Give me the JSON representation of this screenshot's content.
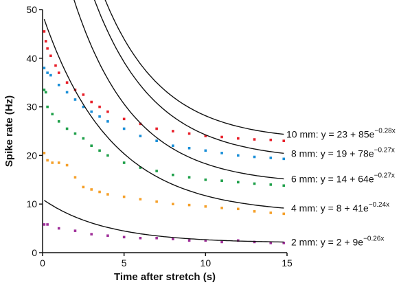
{
  "chart_data": {
    "type": "scatter",
    "xlabel": "Time after stretch (s)",
    "ylabel": "Spike rate (Hz)",
    "xlim": [
      0,
      15
    ],
    "ylim": [
      0,
      50
    ],
    "x_ticks": [
      0,
      5,
      10,
      15
    ],
    "y_ticks": [
      0,
      10,
      20,
      30,
      40,
      50
    ],
    "grid": false,
    "series": [
      {
        "name": "10 mm",
        "color": "#e8202a",
        "fit": {
          "a": 23,
          "b": 85,
          "k": 0.28
        },
        "fit_x_range": [
          0.1,
          14.8
        ],
        "points": [
          [
            0.1,
            45.5
          ],
          [
            0.2,
            43.5
          ],
          [
            0.3,
            42
          ],
          [
            0.5,
            40.5
          ],
          [
            0.8,
            38.5
          ],
          [
            1,
            37
          ],
          [
            1.5,
            35
          ],
          [
            2,
            33.5
          ],
          [
            2.5,
            32.5
          ],
          [
            3,
            31
          ],
          [
            3.5,
            30
          ],
          [
            4,
            29
          ],
          [
            5,
            27.5
          ],
          [
            6,
            26.5
          ],
          [
            7,
            25.5
          ],
          [
            8,
            25
          ],
          [
            9,
            24.5
          ],
          [
            10,
            24
          ],
          [
            11,
            23.8
          ],
          [
            12,
            23.5
          ],
          [
            13,
            23.3
          ],
          [
            14,
            23.2
          ],
          [
            14.8,
            23
          ]
        ],
        "label_prefix": "10 mm: y = 23 + 85e",
        "label_exp": "−0.28x"
      },
      {
        "name": "8 mm",
        "color": "#1a8fd8",
        "fit": {
          "a": 19,
          "b": 78,
          "k": 0.27
        },
        "fit_x_range": [
          0.1,
          14.8
        ],
        "points": [
          [
            0.1,
            38
          ],
          [
            0.3,
            37
          ],
          [
            0.5,
            36.5
          ],
          [
            1,
            34.5
          ],
          [
            1.5,
            33
          ],
          [
            2,
            31.5
          ],
          [
            2.5,
            30
          ],
          [
            3,
            29
          ],
          [
            3.5,
            28
          ],
          [
            4,
            27
          ],
          [
            5,
            25.5
          ],
          [
            6,
            24
          ],
          [
            7,
            23
          ],
          [
            8,
            22
          ],
          [
            9,
            21.5
          ],
          [
            10,
            21
          ],
          [
            11,
            20.5
          ],
          [
            12,
            20
          ],
          [
            13,
            19.7
          ],
          [
            14,
            19.5
          ],
          [
            14.8,
            19.3
          ]
        ],
        "label_prefix": "8 mm: y = 19 + 78e",
        "label_exp": "−0.27x"
      },
      {
        "name": "6 mm",
        "color": "#1fa04a",
        "fit": {
          "a": 14,
          "b": 64,
          "k": 0.27
        },
        "fit_x_range": [
          0.1,
          14.8
        ],
        "points": [
          [
            0.1,
            33.5
          ],
          [
            0.2,
            33
          ],
          [
            0.3,
            30
          ],
          [
            0.6,
            28.5
          ],
          [
            1,
            27
          ],
          [
            1.5,
            25.5
          ],
          [
            2,
            24.5
          ],
          [
            2.5,
            23.5
          ],
          [
            3,
            22
          ],
          [
            3.5,
            21
          ],
          [
            4,
            20
          ],
          [
            5,
            18.5
          ],
          [
            6,
            17.5
          ],
          [
            7,
            16.8
          ],
          [
            8,
            16
          ],
          [
            9,
            15.5
          ],
          [
            10,
            15
          ],
          [
            11,
            14.8
          ],
          [
            12,
            14.5
          ],
          [
            13,
            14.2
          ],
          [
            14,
            14
          ],
          [
            14.8,
            13.8
          ]
        ],
        "label_prefix": "6 mm: y = 14 + 64e",
        "label_exp": "−0.27x"
      },
      {
        "name": "4 mm",
        "color": "#f5a02a",
        "fit": {
          "a": 8,
          "b": 41,
          "k": 0.24
        },
        "fit_x_range": [
          0.1,
          14.8
        ],
        "points": [
          [
            0.1,
            20.5
          ],
          [
            0.3,
            19
          ],
          [
            0.6,
            18.5
          ],
          [
            1,
            18.5
          ],
          [
            1.5,
            18
          ],
          [
            2,
            15.5
          ],
          [
            2.5,
            13.5
          ],
          [
            3,
            13
          ],
          [
            3.5,
            12.5
          ],
          [
            4,
            12
          ],
          [
            5,
            11.5
          ],
          [
            6,
            11
          ],
          [
            7,
            10.5
          ],
          [
            8,
            10
          ],
          [
            9,
            9.8
          ],
          [
            10,
            9.5
          ],
          [
            11,
            9.2
          ],
          [
            12,
            9
          ],
          [
            13,
            8.5
          ],
          [
            14,
            8.2
          ],
          [
            14.8,
            8
          ]
        ],
        "label_prefix": "4 mm: y = 8 + 41e",
        "label_exp": "−0.24x"
      },
      {
        "name": "2 mm",
        "color": "#a0309a",
        "fit": {
          "a": 2,
          "b": 9,
          "k": 0.26
        },
        "fit_x_range": [
          0.1,
          14.8
        ],
        "points": [
          [
            0.1,
            5.8
          ],
          [
            0.3,
            5.8
          ],
          [
            1,
            5
          ],
          [
            2,
            4.5
          ],
          [
            3,
            3.8
          ],
          [
            4,
            3.5
          ],
          [
            5,
            3.2
          ],
          [
            6,
            3
          ],
          [
            7,
            3
          ],
          [
            8,
            2.8
          ],
          [
            9,
            2.5
          ],
          [
            10,
            2.5
          ],
          [
            11,
            2.2
          ],
          [
            12,
            2.5
          ],
          [
            13,
            2.2
          ],
          [
            14,
            2
          ],
          [
            14.8,
            2
          ]
        ],
        "label_prefix": "2 mm: y = 2 + 9e",
        "label_exp": "−0.26x"
      }
    ]
  }
}
